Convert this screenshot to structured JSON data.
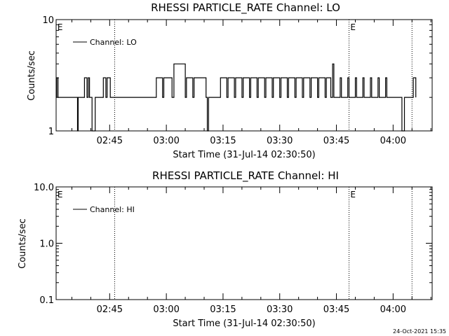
{
  "chart_data": [
    {
      "type": "line",
      "title": "RHESSI PARTICLE_RATE Channel: LO",
      "xlabel": "Start Time (31-Jul-14 02:30:50)",
      "ylabel": "Counts/sec",
      "yscale": "log",
      "ylim": [
        1,
        10
      ],
      "xlim": [
        "02:30:50",
        "04:10:20"
      ],
      "y_tick_labels": [
        "1",
        "10"
      ],
      "x_tick_labels": [
        "02:45",
        "03:00",
        "03:15",
        "03:30",
        "03:45",
        "04:00"
      ],
      "x_tick_times": [
        "02:45",
        "03:00",
        "03:15",
        "03:30",
        "03:45",
        "04:00"
      ],
      "event_lines": [
        "02:46:20",
        "03:48:20",
        "04:05:00"
      ],
      "event_markers": [
        {
          "label": "E",
          "time": "02:31:00"
        },
        {
          "label": "E",
          "time": "03:48:30"
        }
      ],
      "legend": {
        "entries": [
          "Channel: LO"
        ],
        "placement": "top-left"
      },
      "series": [
        {
          "name": "Channel: LO",
          "x": [
            "02:30:50",
            "02:31:00",
            "02:31:20",
            "02:36:00",
            "02:36:30",
            "02:36:40",
            "02:37:10",
            "02:38:00",
            "02:38:20",
            "02:39:00",
            "02:39:20",
            "02:39:40",
            "02:40:00",
            "02:40:20",
            "02:41:10",
            "02:41:30",
            "02:43:00",
            "02:43:20",
            "02:44:00",
            "02:44:20",
            "02:45:10",
            "02:45:30",
            "02:46:30",
            "02:57:00",
            "02:57:20",
            "02:59:00",
            "02:59:20",
            "03:01:30",
            "03:02:00",
            "03:05:00",
            "03:05:20",
            "03:07:00",
            "03:07:20",
            "03:10:30",
            "03:10:50",
            "03:11:10",
            "03:14:00",
            "03:14:20",
            "03:16:00",
            "03:16:20",
            "03:18:00",
            "03:18:20",
            "03:20:00",
            "03:20:20",
            "03:22:00",
            "03:22:20",
            "03:24:00",
            "03:24:20",
            "03:26:00",
            "03:26:20",
            "03:28:00",
            "03:28:20",
            "03:30:00",
            "03:30:20",
            "03:32:00",
            "03:32:20",
            "03:34:00",
            "03:34:20",
            "03:36:00",
            "03:36:20",
            "03:38:00",
            "03:38:20",
            "03:40:00",
            "03:40:20",
            "03:42:00",
            "03:42:20",
            "03:43:30",
            "03:44:00",
            "03:44:20",
            "03:46:00",
            "03:46:20",
            "03:48:00",
            "03:48:20",
            "03:50:00",
            "03:50:20",
            "03:52:00",
            "03:52:20",
            "03:54:00",
            "03:54:20",
            "03:56:00",
            "03:56:20",
            "03:58:00",
            "03:58:20",
            "04:02:00",
            "04:02:20",
            "04:02:40",
            "04:03:00",
            "04:03:20",
            "04:05:00",
            "04:05:20",
            "04:06:00"
          ],
          "y": [
            2,
            3,
            2,
            2,
            1,
            2,
            2,
            2,
            3,
            2,
            3,
            2,
            2,
            1,
            2,
            2,
            2,
            3,
            2,
            3,
            2,
            2,
            2,
            2,
            3,
            2,
            3,
            2,
            4,
            2,
            3,
            2,
            3,
            2,
            1,
            2,
            2,
            3,
            2,
            3,
            2,
            3,
            2,
            3,
            2,
            3,
            2,
            3,
            2,
            3,
            2,
            3,
            2,
            3,
            2,
            3,
            2,
            3,
            2,
            3,
            2,
            3,
            2,
            3,
            2,
            3,
            2,
            4,
            2,
            3,
            2,
            3,
            2,
            3,
            2,
            3,
            2,
            3,
            2,
            3,
            2,
            3,
            2,
            2,
            1,
            1,
            2,
            2,
            2,
            3,
            2
          ]
        }
      ]
    },
    {
      "type": "line",
      "title": "RHESSI PARTICLE_RATE Channel: HI",
      "xlabel": "Start Time (31-Jul-14 02:30:50)",
      "ylabel": "Counts/sec",
      "yscale": "log",
      "ylim": [
        0.1,
        10
      ],
      "xlim": [
        "02:30:50",
        "04:10:20"
      ],
      "y_tick_labels": [
        "0.1",
        "1.0",
        "10.0"
      ],
      "x_tick_labels": [
        "02:45",
        "03:00",
        "03:15",
        "03:30",
        "03:45",
        "04:00"
      ],
      "x_tick_times": [
        "02:45",
        "03:00",
        "03:15",
        "03:30",
        "03:45",
        "04:00"
      ],
      "event_lines": [
        "02:46:20",
        "03:48:20",
        "04:05:00"
      ],
      "event_markers": [
        {
          "label": "E",
          "time": "02:31:00"
        },
        {
          "label": "E",
          "time": "03:48:30"
        }
      ],
      "legend": {
        "entries": [
          "Channel: HI"
        ],
        "placement": "top-left"
      },
      "series": [
        {
          "name": "Channel: HI",
          "x": [],
          "y": []
        }
      ]
    }
  ],
  "footer": {
    "timestamp": "24-Oct-2021 15:35"
  }
}
